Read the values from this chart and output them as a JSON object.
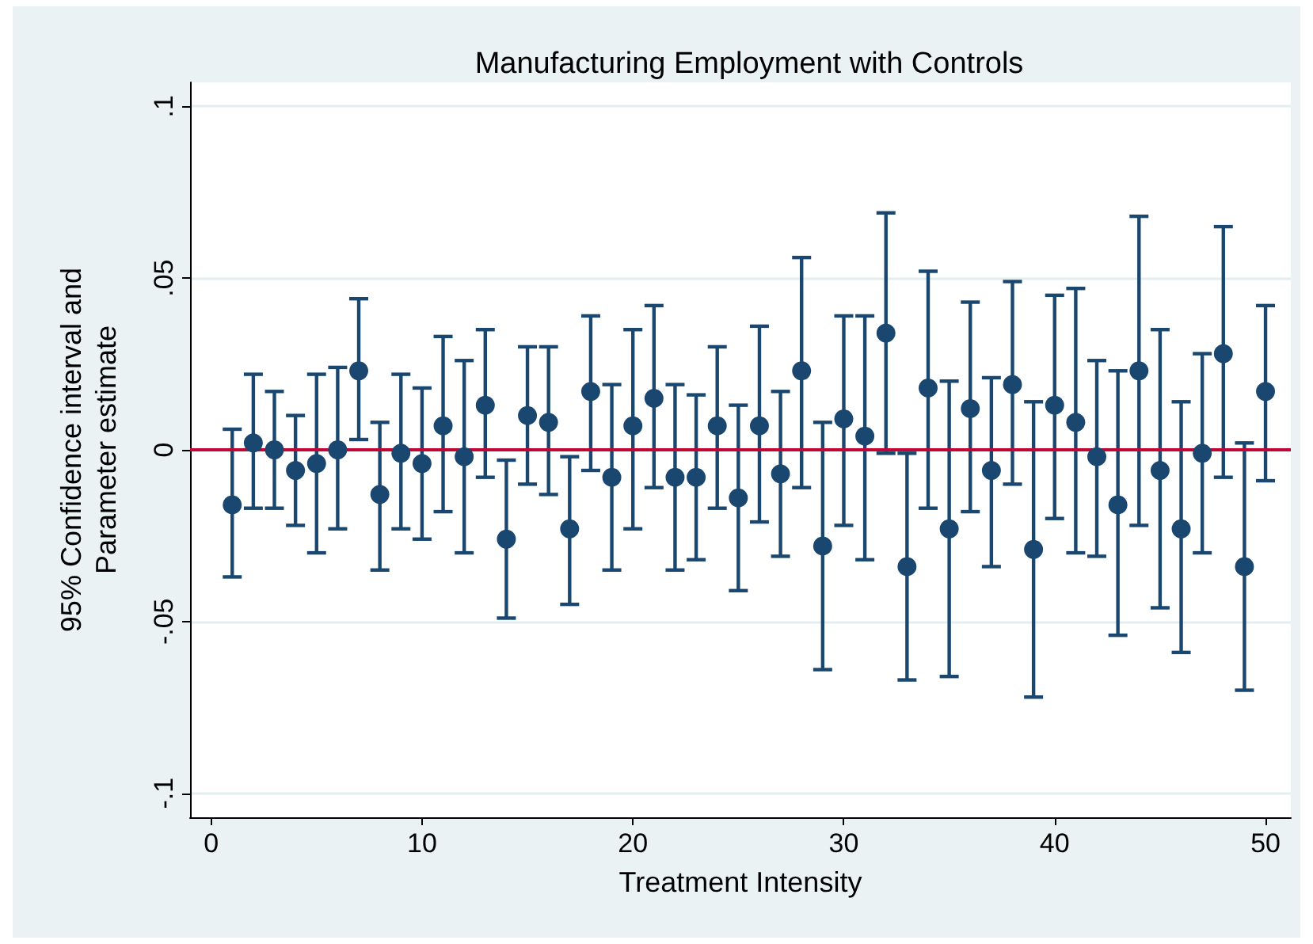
{
  "chart_data": {
    "type": "scatter",
    "title": "Manufacturing Employment with Controls",
    "xlabel": "Treatment Intensity",
    "ylabel": "95% Confidence interval and\nParameter estimate",
    "series": [
      {
        "color": "#1a476f",
        "x": [
          1,
          2,
          3,
          4,
          5,
          6,
          7,
          8,
          9,
          10,
          11,
          12,
          13,
          14,
          15,
          16,
          17,
          18,
          19,
          20,
          21,
          22,
          23,
          24,
          25,
          26,
          27,
          28,
          29,
          30,
          31,
          32,
          33,
          34,
          35,
          36,
          37,
          38,
          39,
          40,
          41,
          42,
          43,
          44,
          45,
          46,
          47,
          48,
          49,
          50
        ],
        "values": [
          -0.016,
          0.002,
          0.0,
          -0.006,
          -0.004,
          0.0,
          0.023,
          -0.013,
          -0.001,
          -0.004,
          0.007,
          -0.002,
          0.013,
          -0.026,
          0.01,
          0.008,
          -0.023,
          0.017,
          -0.008,
          0.007,
          0.015,
          -0.008,
          -0.008,
          0.007,
          -0.014,
          0.007,
          -0.007,
          0.023,
          -0.028,
          0.009,
          0.004,
          0.034,
          -0.034,
          0.018,
          -0.023,
          0.012,
          -0.006,
          0.019,
          -0.029,
          0.013,
          0.008,
          -0.002,
          -0.016,
          0.023,
          -0.006,
          -0.023,
          -0.001,
          0.028,
          -0.034,
          0.017
        ],
        "errors": [
          [
            -0.037,
            0.006
          ],
          [
            -0.017,
            0.022
          ],
          [
            -0.017,
            0.017
          ],
          [
            -0.022,
            0.01
          ],
          [
            -0.03,
            0.022
          ],
          [
            -0.023,
            0.024
          ],
          [
            0.003,
            0.044
          ],
          [
            -0.035,
            0.008
          ],
          [
            -0.023,
            0.022
          ],
          [
            -0.026,
            0.018
          ],
          [
            -0.018,
            0.033
          ],
          [
            -0.03,
            0.026
          ],
          [
            -0.008,
            0.035
          ],
          [
            -0.049,
            -0.003
          ],
          [
            -0.01,
            0.03
          ],
          [
            -0.013,
            0.03
          ],
          [
            -0.045,
            -0.002
          ],
          [
            -0.006,
            0.039
          ],
          [
            -0.035,
            0.019
          ],
          [
            -0.023,
            0.035
          ],
          [
            -0.011,
            0.042
          ],
          [
            -0.035,
            0.019
          ],
          [
            -0.032,
            0.016
          ],
          [
            -0.017,
            0.03
          ],
          [
            -0.041,
            0.013
          ],
          [
            -0.021,
            0.036
          ],
          [
            -0.031,
            0.017
          ],
          [
            -0.011,
            0.056
          ],
          [
            -0.064,
            0.008
          ],
          [
            -0.022,
            0.039
          ],
          [
            -0.032,
            0.039
          ],
          [
            -0.001,
            0.069
          ],
          [
            -0.067,
            -0.001
          ],
          [
            -0.017,
            0.052
          ],
          [
            -0.066,
            0.02
          ],
          [
            -0.018,
            0.043
          ],
          [
            -0.034,
            0.021
          ],
          [
            -0.01,
            0.049
          ],
          [
            -0.072,
            0.014
          ],
          [
            -0.02,
            0.045
          ],
          [
            -0.03,
            0.047
          ],
          [
            -0.031,
            0.026
          ],
          [
            -0.054,
            0.023
          ],
          [
            -0.022,
            0.068
          ],
          [
            -0.046,
            0.035
          ],
          [
            -0.059,
            0.014
          ],
          [
            -0.03,
            0.028
          ],
          [
            -0.008,
            0.065
          ],
          [
            -0.07,
            0.002
          ],
          [
            -0.009,
            0.042
          ]
        ]
      }
    ],
    "xlim": [
      -1,
      51.2
    ],
    "xticks": [
      0,
      10,
      20,
      30,
      40,
      50
    ],
    "ylim": [
      -0.107,
      0.107
    ],
    "yticks": [
      {
        "value": -0.1,
        "label": "-.1"
      },
      {
        "value": -0.05,
        "label": "-.05"
      },
      0,
      {
        "value": 0.05,
        "label": ".05"
      },
      {
        "value": 0.1,
        "label": ".1"
      }
    ],
    "grid": "y",
    "marker": "circle",
    "ref_lines": [
      {
        "axis": "y",
        "value": 0,
        "label": null,
        "color": "#c10534"
      }
    ]
  }
}
